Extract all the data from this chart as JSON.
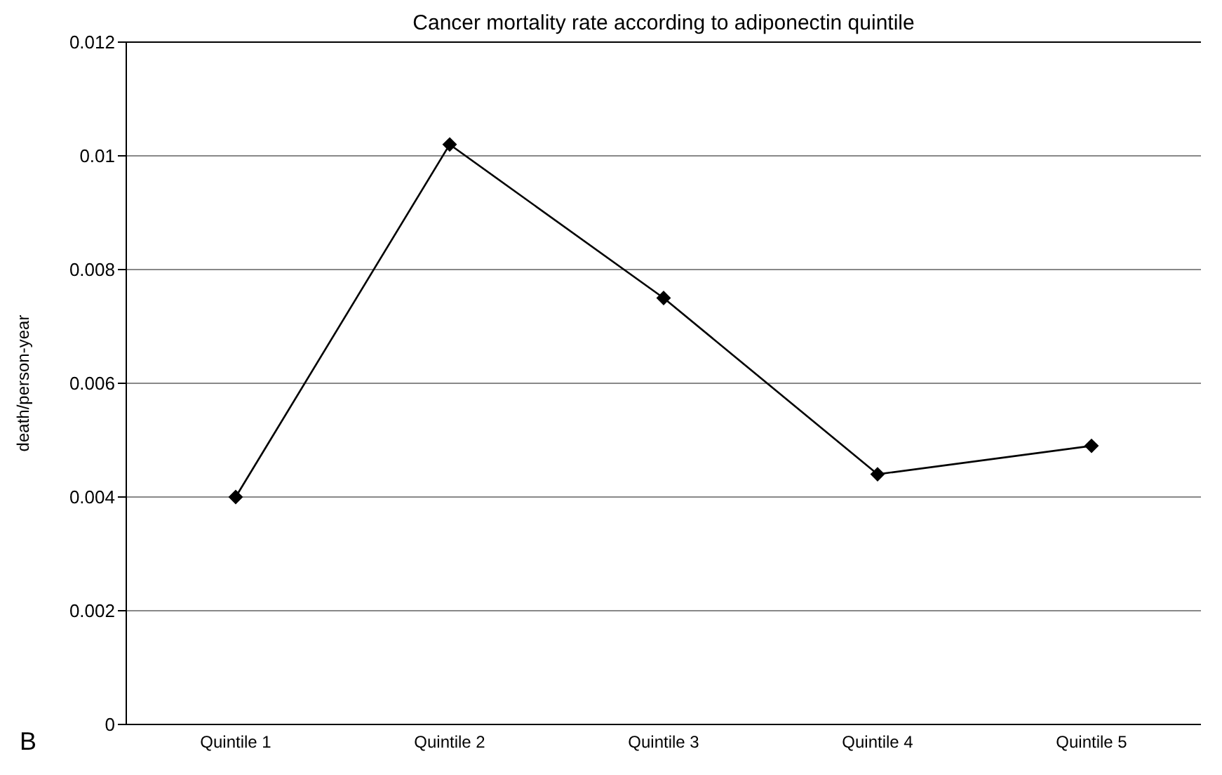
{
  "chart_data": {
    "type": "line",
    "title": "Cancer mortality rate according to adiponectin quintile",
    "ylabel": "death/person-year",
    "annotations": [
      "B"
    ],
    "categories": [
      "Quintile 1",
      "Quintile 2",
      "Quintile 3",
      "Quintile 4",
      "Quintile 5"
    ],
    "series": [
      {
        "color": "#000000",
        "values": [
          0.004,
          0.0102,
          0.0075,
          0.0044,
          0.0049
        ]
      }
    ],
    "ylim": [
      0,
      0.012
    ],
    "yticks": [
      0,
      0.002,
      0.004,
      0.006,
      0.008,
      0.01,
      0.012
    ],
    "grid": "y",
    "legend": false,
    "marker": "diamond",
    "line_style": "solid"
  }
}
